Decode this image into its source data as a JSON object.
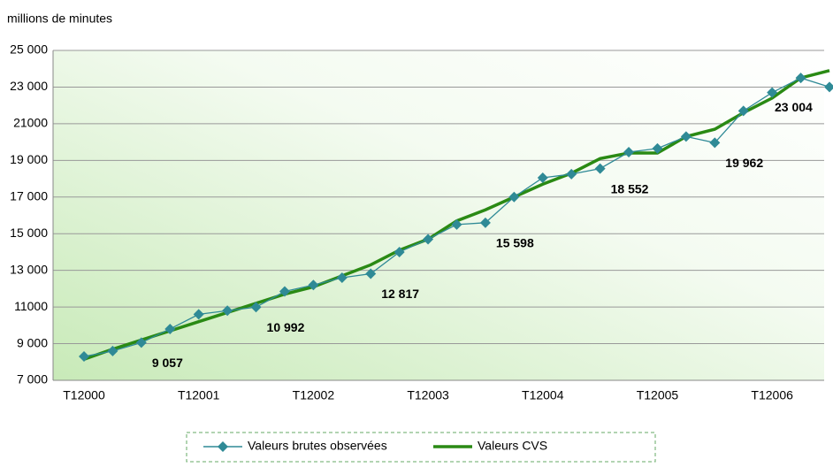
{
  "chart_data": {
    "type": "line",
    "y_axis_label": "millions de minutes",
    "categories": [
      "T12000",
      null,
      null,
      null,
      "T12001",
      null,
      null,
      null,
      "T12002",
      null,
      null,
      null,
      "T12003",
      null,
      null,
      null,
      "T12004",
      null,
      null,
      null,
      "T12005",
      null,
      null,
      null,
      "T12006",
      null,
      null
    ],
    "series": [
      {
        "name": "Valeurs brutes observées",
        "color": "#2f8a96",
        "marker": "diamond",
        "values": [
          8300,
          8600,
          9057,
          9800,
          10600,
          10800,
          10992,
          11850,
          12200,
          12600,
          12817,
          14000,
          14700,
          15500,
          15598,
          17000,
          18050,
          18250,
          18552,
          19450,
          19650,
          20300,
          19962,
          21700,
          22700,
          23500,
          23004
        ],
        "value_labels": [
          null,
          null,
          "9 057",
          null,
          null,
          null,
          "10 992",
          null,
          null,
          null,
          "12 817",
          null,
          null,
          null,
          "15 598",
          null,
          null,
          null,
          "18 552",
          null,
          null,
          null,
          "19 962",
          null,
          null,
          null,
          "23 004"
        ]
      },
      {
        "name": "Valeurs CVS",
        "color": "#2a8a14",
        "values": [
          8150,
          8700,
          9200,
          9700,
          10200,
          10700,
          11200,
          11700,
          12100,
          12700,
          13300,
          14100,
          14700,
          15700,
          16300,
          17000,
          17700,
          18300,
          19100,
          19400,
          19400,
          20300,
          20700,
          21600,
          22400,
          23500,
          23900
        ]
      }
    ],
    "ylim": [
      7000,
      25000
    ],
    "yticks": [
      {
        "value": 7000,
        "label": "7 000"
      },
      {
        "value": 9000,
        "label": "9 000"
      },
      11000,
      {
        "value": 13000,
        "label": "13 000"
      },
      {
        "value": 15000,
        "label": "15 000"
      },
      {
        "value": 17000,
        "label": "17 000"
      },
      {
        "value": 19000,
        "label": "19 000"
      },
      21000,
      {
        "value": 23000,
        "label": "23 000"
      },
      {
        "value": 25000,
        "label": "25 000"
      }
    ],
    "grid": true,
    "legend": "bottom"
  }
}
